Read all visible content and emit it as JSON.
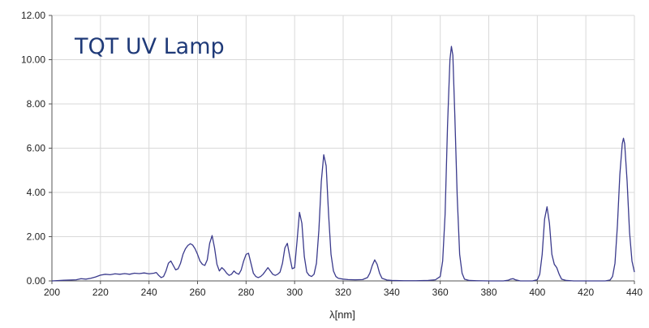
{
  "chart_data": {
    "type": "line",
    "title": "TQT UV Lamp",
    "xlabel": "λ[nm]",
    "ylabel": "",
    "xlim": [
      200,
      440
    ],
    "ylim": [
      0,
      12
    ],
    "x_ticks": [
      "200",
      "220",
      "240",
      "260",
      "280",
      "300",
      "320",
      "340",
      "360",
      "380",
      "400",
      "420",
      "440"
    ],
    "y_ticks": [
      "0.00",
      "2.00",
      "4.00",
      "6.00",
      "8.00",
      "10.00",
      "12.00"
    ],
    "grid": true,
    "colors": {
      "line": "#3a3a8c",
      "title": "#1f3a78",
      "grid": "#d9d9d9",
      "axis": "#555555"
    },
    "series": [
      {
        "values": [
          [
            200,
            0.0
          ],
          [
            205,
            0.03
          ],
          [
            210,
            0.05
          ],
          [
            212,
            0.1
          ],
          [
            214,
            0.08
          ],
          [
            216,
            0.12
          ],
          [
            218,
            0.18
          ],
          [
            220,
            0.26
          ],
          [
            222,
            0.3
          ],
          [
            224,
            0.28
          ],
          [
            226,
            0.32
          ],
          [
            228,
            0.3
          ],
          [
            230,
            0.33
          ],
          [
            232,
            0.3
          ],
          [
            234,
            0.35
          ],
          [
            236,
            0.33
          ],
          [
            238,
            0.36
          ],
          [
            240,
            0.32
          ],
          [
            242,
            0.35
          ],
          [
            243,
            0.38
          ],
          [
            244,
            0.25
          ],
          [
            245,
            0.15
          ],
          [
            246,
            0.2
          ],
          [
            247,
            0.45
          ],
          [
            248,
            0.8
          ],
          [
            249,
            0.9
          ],
          [
            250,
            0.7
          ],
          [
            251,
            0.5
          ],
          [
            252,
            0.55
          ],
          [
            253,
            0.8
          ],
          [
            254,
            1.2
          ],
          [
            255,
            1.45
          ],
          [
            256,
            1.6
          ],
          [
            257,
            1.68
          ],
          [
            258,
            1.62
          ],
          [
            259,
            1.45
          ],
          [
            260,
            1.2
          ],
          [
            261,
            0.9
          ],
          [
            262,
            0.75
          ],
          [
            263,
            0.7
          ],
          [
            264,
            0.95
          ],
          [
            265,
            1.7
          ],
          [
            266,
            2.05
          ],
          [
            267,
            1.5
          ],
          [
            268,
            0.75
          ],
          [
            269,
            0.45
          ],
          [
            270,
            0.6
          ],
          [
            271,
            0.5
          ],
          [
            272,
            0.35
          ],
          [
            273,
            0.25
          ],
          [
            274,
            0.3
          ],
          [
            275,
            0.45
          ],
          [
            276,
            0.35
          ],
          [
            277,
            0.3
          ],
          [
            278,
            0.5
          ],
          [
            279,
            0.9
          ],
          [
            280,
            1.2
          ],
          [
            281,
            1.25
          ],
          [
            282,
            0.8
          ],
          [
            283,
            0.35
          ],
          [
            284,
            0.2
          ],
          [
            285,
            0.15
          ],
          [
            286,
            0.2
          ],
          [
            287,
            0.3
          ],
          [
            288,
            0.45
          ],
          [
            289,
            0.6
          ],
          [
            290,
            0.45
          ],
          [
            291,
            0.3
          ],
          [
            292,
            0.25
          ],
          [
            293,
            0.3
          ],
          [
            294,
            0.4
          ],
          [
            295,
            0.8
          ],
          [
            296,
            1.5
          ],
          [
            297,
            1.7
          ],
          [
            298,
            1.1
          ],
          [
            299,
            0.55
          ],
          [
            300,
            0.6
          ],
          [
            301,
            1.8
          ],
          [
            302,
            3.1
          ],
          [
            303,
            2.6
          ],
          [
            304,
            1.1
          ],
          [
            305,
            0.4
          ],
          [
            306,
            0.25
          ],
          [
            307,
            0.2
          ],
          [
            308,
            0.3
          ],
          [
            309,
            0.8
          ],
          [
            310,
            2.3
          ],
          [
            311,
            4.5
          ],
          [
            312,
            5.7
          ],
          [
            313,
            5.2
          ],
          [
            314,
            3.0
          ],
          [
            315,
            1.2
          ],
          [
            316,
            0.45
          ],
          [
            317,
            0.2
          ],
          [
            318,
            0.12
          ],
          [
            320,
            0.08
          ],
          [
            322,
            0.06
          ],
          [
            325,
            0.05
          ],
          [
            328,
            0.06
          ],
          [
            330,
            0.15
          ],
          [
            331,
            0.35
          ],
          [
            332,
            0.7
          ],
          [
            333,
            0.95
          ],
          [
            334,
            0.75
          ],
          [
            335,
            0.35
          ],
          [
            336,
            0.12
          ],
          [
            338,
            0.04
          ],
          [
            340,
            0.02
          ],
          [
            345,
            0.01
          ],
          [
            350,
            0.01
          ],
          [
            355,
            0.02
          ],
          [
            358,
            0.05
          ],
          [
            360,
            0.2
          ],
          [
            361,
            0.9
          ],
          [
            362,
            3.0
          ],
          [
            363,
            7.0
          ],
          [
            364,
            10.0
          ],
          [
            364.6,
            10.6
          ],
          [
            365.2,
            10.2
          ],
          [
            366,
            7.5
          ],
          [
            367,
            3.8
          ],
          [
            368,
            1.2
          ],
          [
            369,
            0.35
          ],
          [
            370,
            0.08
          ],
          [
            372,
            0.02
          ],
          [
            375,
            0.01
          ],
          [
            380,
            0.0
          ],
          [
            386,
            0.0
          ],
          [
            388,
            0.03
          ],
          [
            389,
            0.08
          ],
          [
            390,
            0.1
          ],
          [
            391,
            0.05
          ],
          [
            393,
            0.0
          ],
          [
            398,
            0.0
          ],
          [
            400,
            0.05
          ],
          [
            401,
            0.3
          ],
          [
            402,
            1.2
          ],
          [
            403,
            2.8
          ],
          [
            404,
            3.35
          ],
          [
            405,
            2.6
          ],
          [
            406,
            1.2
          ],
          [
            407,
            0.75
          ],
          [
            408,
            0.6
          ],
          [
            409,
            0.3
          ],
          [
            410,
            0.08
          ],
          [
            412,
            0.02
          ],
          [
            415,
            0.0
          ],
          [
            420,
            0.0
          ],
          [
            428,
            0.0
          ],
          [
            430,
            0.04
          ],
          [
            431,
            0.2
          ],
          [
            432,
            0.8
          ],
          [
            433,
            2.5
          ],
          [
            434,
            4.8
          ],
          [
            435,
            6.2
          ],
          [
            435.5,
            6.45
          ],
          [
            436,
            6.2
          ],
          [
            437,
            4.5
          ],
          [
            438,
            2.2
          ],
          [
            439,
            0.9
          ],
          [
            440,
            0.4
          ]
        ]
      }
    ]
  }
}
